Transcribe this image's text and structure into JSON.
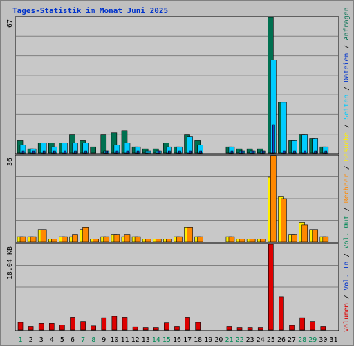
{
  "title": "Tages-Statistik im Monat Juni 2025",
  "colors": {
    "frame_bg": "#c0c0c0",
    "plot_bg": "#c8c8c8",
    "grid": "#808080",
    "anfragen": "#007050",
    "dateien": "#00ccff",
    "seiten": "#1a3fd0",
    "besuche": "#ffee00",
    "rechner": "#ff8800",
    "volumen": "#dd0000",
    "sep": "#000000",
    "title": "#0033cc",
    "weekday": "#000000",
    "weekend": "#008855"
  },
  "right_labels": [
    {
      "text": "Anfragen",
      "color": "#007050"
    },
    {
      "text": " / ",
      "color": "#000000"
    },
    {
      "text": "Dateien",
      "color": "#0033cc"
    },
    {
      "text": " / ",
      "color": "#000000"
    },
    {
      "text": "Seiten",
      "color": "#00ccff"
    },
    {
      "text": " / ",
      "color": "#000000"
    },
    {
      "text": "Besuche",
      "color": "#ffee00"
    },
    {
      "text": " / ",
      "color": "#000000"
    },
    {
      "text": "Rechner",
      "color": "#ff8800"
    },
    {
      "text": " / ",
      "color": "#000000"
    },
    {
      "text": "Vol. Out",
      "color": "#008855"
    },
    {
      "text": " / ",
      "color": "#000000"
    },
    {
      "text": "Vol. In",
      "color": "#0033cc"
    },
    {
      "text": " / ",
      "color": "#000000"
    },
    {
      "text": "Volumen",
      "color": "#dd0000"
    }
  ],
  "chart_data": [
    {
      "type": "bar",
      "title": "Tages-Statistik im Monat Juni 2025",
      "ylabel": "67",
      "ylim": [
        0,
        67
      ],
      "categories": [
        "1",
        "2",
        "3",
        "4",
        "5",
        "6",
        "7",
        "8",
        "9",
        "10",
        "11",
        "12",
        "13",
        "14",
        "15",
        "16",
        "17",
        "18",
        "19",
        "20",
        "21",
        "22",
        "23",
        "24",
        "25",
        "26",
        "27",
        "28",
        "29",
        "30",
        "31"
      ],
      "series": [
        {
          "name": "Anfragen",
          "values": [
            6,
            2,
            5,
            5,
            5,
            9,
            6,
            3,
            9,
            10,
            11,
            3,
            2,
            2,
            5,
            3,
            9,
            6,
            0,
            0,
            3,
            2,
            2,
            2,
            67,
            25,
            6,
            9,
            7,
            3,
            0
          ]
        },
        {
          "name": "Dateien",
          "values": [
            4,
            2,
            5,
            3,
            5,
            5,
            5,
            0,
            1,
            4,
            5,
            3,
            1,
            1,
            3,
            3,
            8,
            4,
            0,
            0,
            3,
            1,
            1,
            1,
            46,
            25,
            6,
            9,
            7,
            3,
            0
          ]
        },
        {
          "name": "Seiten",
          "values": [
            1,
            1,
            1,
            1,
            1,
            1,
            1,
            0,
            1,
            1,
            1,
            1,
            0,
            1,
            1,
            1,
            1,
            1,
            0,
            0,
            1,
            1,
            1,
            1,
            14,
            1,
            1,
            1,
            1,
            1,
            0
          ]
        }
      ]
    },
    {
      "type": "bar",
      "ylabel": "36",
      "ylim": [
        0,
        36
      ],
      "categories": [
        "1",
        "2",
        "3",
        "4",
        "5",
        "6",
        "7",
        "8",
        "9",
        "10",
        "11",
        "12",
        "13",
        "14",
        "15",
        "16",
        "17",
        "18",
        "19",
        "20",
        "21",
        "22",
        "23",
        "24",
        "25",
        "26",
        "27",
        "28",
        "29",
        "30",
        "31"
      ],
      "series": [
        {
          "name": "Besuche",
          "values": [
            2,
            2,
            5,
            1,
            2,
            2,
            5,
            1,
            2,
            3,
            2,
            2,
            1,
            1,
            1,
            2,
            6,
            2,
            0,
            0,
            2,
            1,
            1,
            1,
            27,
            19,
            3,
            8,
            5,
            2,
            0
          ]
        },
        {
          "name": "Rechner",
          "values": [
            2,
            2,
            5,
            1,
            2,
            3,
            6,
            1,
            2,
            3,
            3,
            2,
            1,
            1,
            1,
            2,
            6,
            2,
            0,
            0,
            2,
            1,
            1,
            1,
            36,
            18,
            3,
            7,
            5,
            2,
            0
          ]
        }
      ]
    },
    {
      "type": "bar",
      "ylabel": "18.04 KB",
      "ylim": [
        0,
        18.04
      ],
      "categories": [
        "1",
        "2",
        "3",
        "4",
        "5",
        "6",
        "7",
        "8",
        "9",
        "10",
        "11",
        "12",
        "13",
        "14",
        "15",
        "16",
        "17",
        "18",
        "19",
        "20",
        "21",
        "22",
        "23",
        "24",
        "25",
        "26",
        "27",
        "28",
        "29",
        "30",
        "31"
      ],
      "series": [
        {
          "name": "Volumen",
          "values": [
            1.6,
            0.8,
            1.4,
            1.4,
            1.1,
            2.7,
            1.8,
            0.9,
            2.6,
            2.9,
            2.7,
            0.7,
            0.5,
            0.5,
            1.5,
            0.8,
            2.7,
            1.6,
            0,
            0,
            0.8,
            0.5,
            0.5,
            0.5,
            18.04,
            7,
            1,
            2.6,
            1.8,
            0.8,
            0
          ]
        }
      ]
    }
  ],
  "weekend_days": [
    1,
    7,
    8,
    14,
    15,
    21,
    22,
    28,
    29
  ]
}
